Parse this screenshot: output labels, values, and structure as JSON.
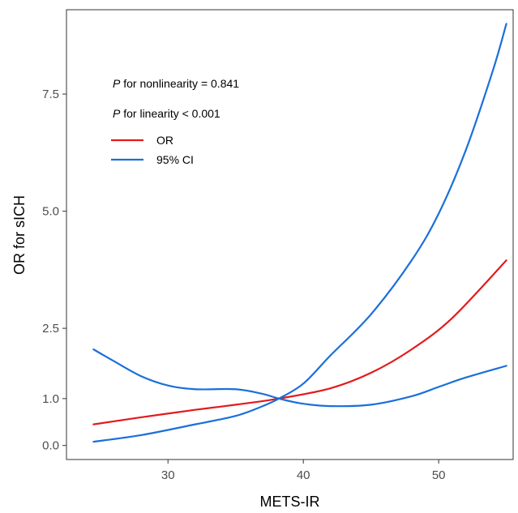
{
  "chart_data": {
    "type": "line",
    "title": "",
    "xlabel": "METS-IR",
    "ylabel": "OR for sICH",
    "xlim": [
      22.5,
      55.5
    ],
    "ylim": [
      -0.3,
      9.3
    ],
    "x_ticks": [
      30,
      40,
      50
    ],
    "x_tick_labels": [
      "30",
      "40",
      "50"
    ],
    "y_ticks": [
      0.0,
      1.0,
      2.5,
      5.0,
      7.5
    ],
    "y_tick_labels": [
      "0.0",
      "1.0",
      "2.5",
      "5.0",
      "7.5"
    ],
    "grid": false,
    "legend_position": "top-left",
    "annotations": {
      "nonlinearity": {
        "prefix": "P",
        "text": " for nonlinearity = 0.841"
      },
      "linearity": {
        "prefix": "P",
        "text": " for linearity < 0.001"
      }
    },
    "series": [
      {
        "name": "OR",
        "legend_label": "OR",
        "color": "#e31a1c",
        "lines": [
          {
            "x": [
              24.5,
              28,
              32,
              35,
              38.2,
              42,
              45,
              48,
              51,
              55
            ],
            "y": [
              0.45,
              0.6,
              0.76,
              0.87,
              1.0,
              1.22,
              1.55,
              2.05,
              2.72,
              3.95
            ]
          }
        ]
      },
      {
        "name": "95% CI",
        "legend_label": "95% CI",
        "color": "#1a6fdb",
        "lines": [
          {
            "x": [
              24.5,
              26,
              28,
              30,
              32,
              35,
              37,
              38.2,
              40,
              42,
              45,
              48,
              50,
              52,
              55
            ],
            "y": [
              2.05,
              1.8,
              1.48,
              1.28,
              1.2,
              1.2,
              1.1,
              1.0,
              0.89,
              0.84,
              0.87,
              1.05,
              1.25,
              1.45,
              1.7
            ]
          },
          {
            "x": [
              24.5,
              28,
              32,
              35,
              37,
              38.2,
              40,
              42,
              45,
              48,
              50,
              52,
              54,
              55
            ],
            "y": [
              0.08,
              0.22,
              0.45,
              0.63,
              0.84,
              1.0,
              1.32,
              1.92,
              2.8,
              3.95,
              4.95,
              6.3,
              8.0,
              9.0
            ]
          }
        ]
      }
    ]
  }
}
